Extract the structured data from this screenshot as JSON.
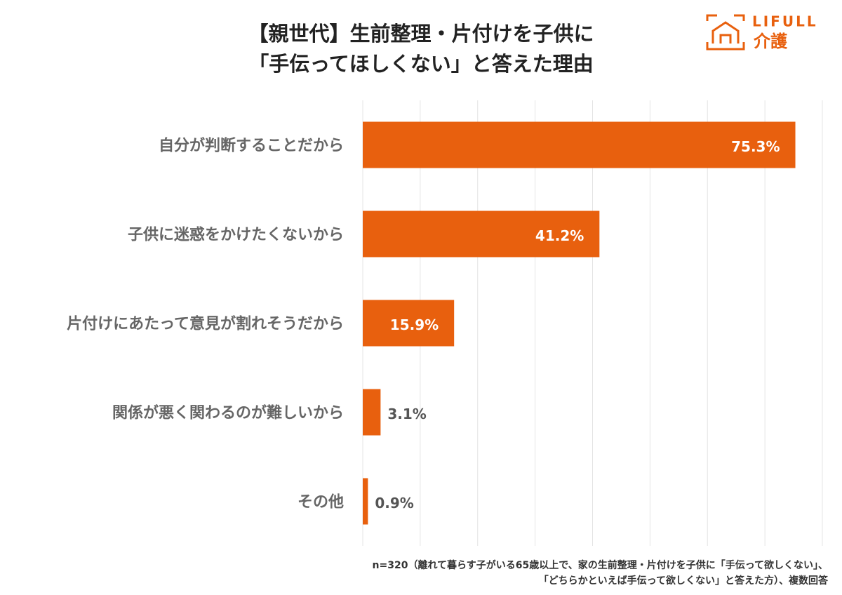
{
  "chart_data": {
    "type": "hbar",
    "title": [
      "【親世代】生前整理・片付けを子供に",
      "「手伝ってほしくない」と答えた理由"
    ],
    "categories": [
      "自分が判断することだから",
      "子供に迷惑をかけたくないから",
      "片付けにあたって意見が割れそうだから",
      "関係が悪く関わるのが難しいから",
      "その他"
    ],
    "values": [
      75.3,
      41.2,
      15.9,
      3.1,
      0.9
    ],
    "value_labels": [
      "75.3%",
      "41.2%",
      "15.9%",
      "3.1%",
      "0.9%"
    ],
    "color": "#e8600e",
    "xlim": [
      0,
      80
    ],
    "xticks": [
      0,
      10,
      20,
      30,
      40,
      50,
      60,
      70,
      80
    ],
    "grid": true,
    "note": [
      "n=320（離れて暮らす子がいる65歳以上で、家の生前整理・片付けを子供に「手伝って欲しくない」、",
      "「どちらかといえば手伝って欲しくない」と答えた方）、複数回答"
    ]
  },
  "logo": {
    "brand": "LIFULL",
    "service": "介護"
  }
}
